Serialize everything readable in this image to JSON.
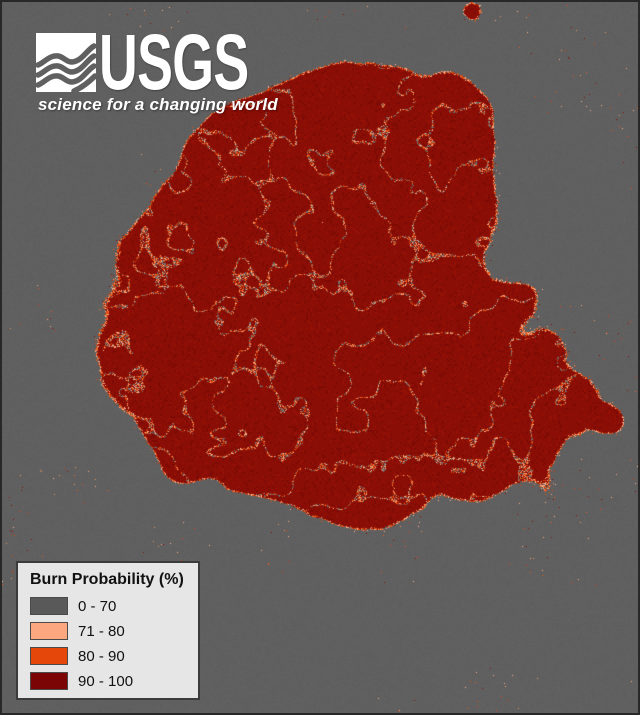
{
  "header": {
    "logo_text": "USGS",
    "tagline": "science for a changing world"
  },
  "legend": {
    "title": "Burn Probability (%)",
    "items": [
      {
        "label": "0 - 70",
        "color": "#595959"
      },
      {
        "label": "71 - 80",
        "color": "#fca77f"
      },
      {
        "label": "80 - 90",
        "color": "#e5470a"
      },
      {
        "label": "90 - 100",
        "color": "#7b0404"
      }
    ]
  },
  "map": {
    "colors": {
      "background": "#606060",
      "burn_high": "#8a0e06",
      "burn_mid": "#e5470a",
      "burn_low": "#fca77f",
      "frame_border": "#282828"
    }
  }
}
